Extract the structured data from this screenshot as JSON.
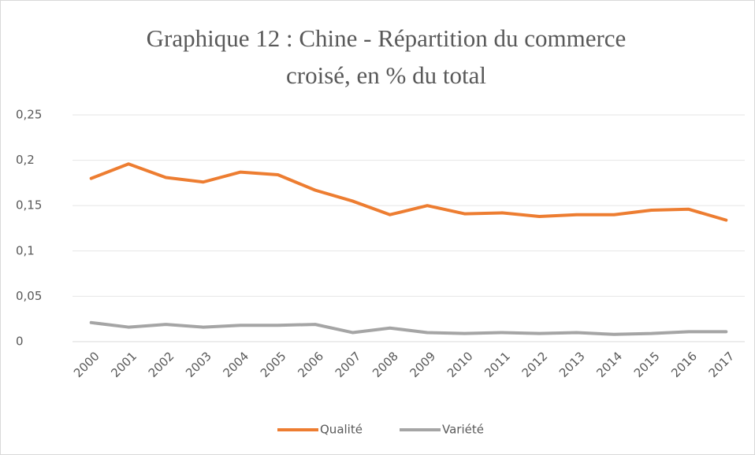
{
  "chart_data": {
    "type": "line",
    "title": [
      "Graphique 12 : Chine - Répartition du commerce",
      "croisé, en % du total"
    ],
    "categories": [
      "2000",
      "2001",
      "2002",
      "2003",
      "2004",
      "2005",
      "2006",
      "2007",
      "2008",
      "2009",
      "2010",
      "2011",
      "2012",
      "2013",
      "2014",
      "2015",
      "2016",
      "2017"
    ],
    "series": [
      {
        "name": "Qualité",
        "color": "#ed7d31",
        "values": [
          0.18,
          0.196,
          0.181,
          0.176,
          0.187,
          0.184,
          0.167,
          0.155,
          0.14,
          0.15,
          0.141,
          0.142,
          0.138,
          0.14,
          0.14,
          0.145,
          0.146,
          0.134
        ]
      },
      {
        "name": "Variété",
        "color": "#a5a5a5",
        "values": [
          0.021,
          0.016,
          0.019,
          0.016,
          0.018,
          0.018,
          0.019,
          0.01,
          0.015,
          0.01,
          0.009,
          0.01,
          0.009,
          0.01,
          0.008,
          0.009,
          0.011,
          0.011
        ]
      }
    ],
    "ylim": [
      0,
      0.25
    ],
    "yticks": [
      0,
      {
        "value": 0.05,
        "label": "0,05"
      },
      {
        "value": 0.1,
        "label": "0,1"
      },
      {
        "value": 0.15,
        "label": "0,15"
      },
      {
        "value": 0.2,
        "label": "0,2"
      },
      {
        "value": 0.25,
        "label": "0,25"
      }
    ],
    "grid": true,
    "legend": "bottom"
  }
}
